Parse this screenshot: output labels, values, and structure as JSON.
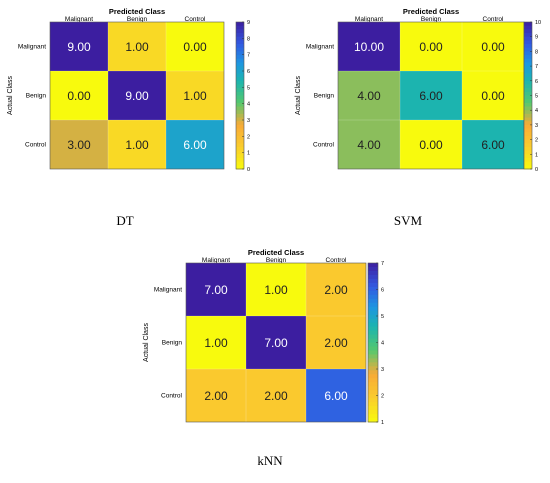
{
  "chart_data": [
    {
      "type": "heatmap",
      "caption": "DT",
      "title": "Predicted Class",
      "ylabel": "Actual Class",
      "x_categories": [
        "Malignant",
        "Benign",
        "Control"
      ],
      "y_categories": [
        "Malignant",
        "Benign",
        "Control"
      ],
      "values": [
        [
          9.0,
          1.0,
          0.0
        ],
        [
          0.0,
          9.0,
          1.0
        ],
        [
          3.0,
          1.0,
          6.0
        ]
      ],
      "value_labels": [
        [
          "9.00",
          "1.00",
          "0.00"
        ],
        [
          "0.00",
          "9.00",
          "1.00"
        ],
        [
          "3.00",
          "1.00",
          "6.00"
        ]
      ],
      "colorbar_range": [
        0,
        9
      ],
      "colorbar_ticks": [
        "0",
        "1",
        "2",
        "3",
        "4",
        "5",
        "6",
        "7",
        "8",
        "9"
      ],
      "colormap": "parula"
    },
    {
      "type": "heatmap",
      "caption": "SVM",
      "title": "Predicted Class",
      "ylabel": "Actual Class",
      "x_categories": [
        "Malignant",
        "Benign",
        "Control"
      ],
      "y_categories": [
        "Malignant",
        "Benign",
        "Control"
      ],
      "values": [
        [
          10.0,
          0.0,
          0.0
        ],
        [
          4.0,
          6.0,
          0.0
        ],
        [
          4.0,
          0.0,
          6.0
        ]
      ],
      "value_labels": [
        [
          "10.00",
          "0.00",
          "0.00"
        ],
        [
          "4.00",
          "6.00",
          "0.00"
        ],
        [
          "4.00",
          "0.00",
          "6.00"
        ]
      ],
      "colorbar_range": [
        0,
        10
      ],
      "colorbar_ticks": [
        "0",
        "1",
        "2",
        "3",
        "4",
        "5",
        "6",
        "7",
        "8",
        "9",
        "10"
      ],
      "colormap": "parula"
    },
    {
      "type": "heatmap",
      "caption": "kNN",
      "title": "Predicted Class",
      "ylabel": "Actual Class",
      "x_categories": [
        "Malignant",
        "Benign",
        "Control"
      ],
      "y_categories": [
        "Malignant",
        "Benign",
        "Control"
      ],
      "values": [
        [
          7.0,
          1.0,
          2.0
        ],
        [
          1.0,
          7.0,
          2.0
        ],
        [
          2.0,
          2.0,
          6.0
        ]
      ],
      "value_labels": [
        [
          "7.00",
          "1.00",
          "2.00"
        ],
        [
          "1.00",
          "7.00",
          "2.00"
        ],
        [
          "2.00",
          "2.00",
          "6.00"
        ]
      ],
      "colorbar_range": [
        1,
        7
      ],
      "colorbar_ticks": [
        "1",
        "2",
        "3",
        "4",
        "5",
        "6",
        "7"
      ],
      "colormap": "parula"
    }
  ]
}
